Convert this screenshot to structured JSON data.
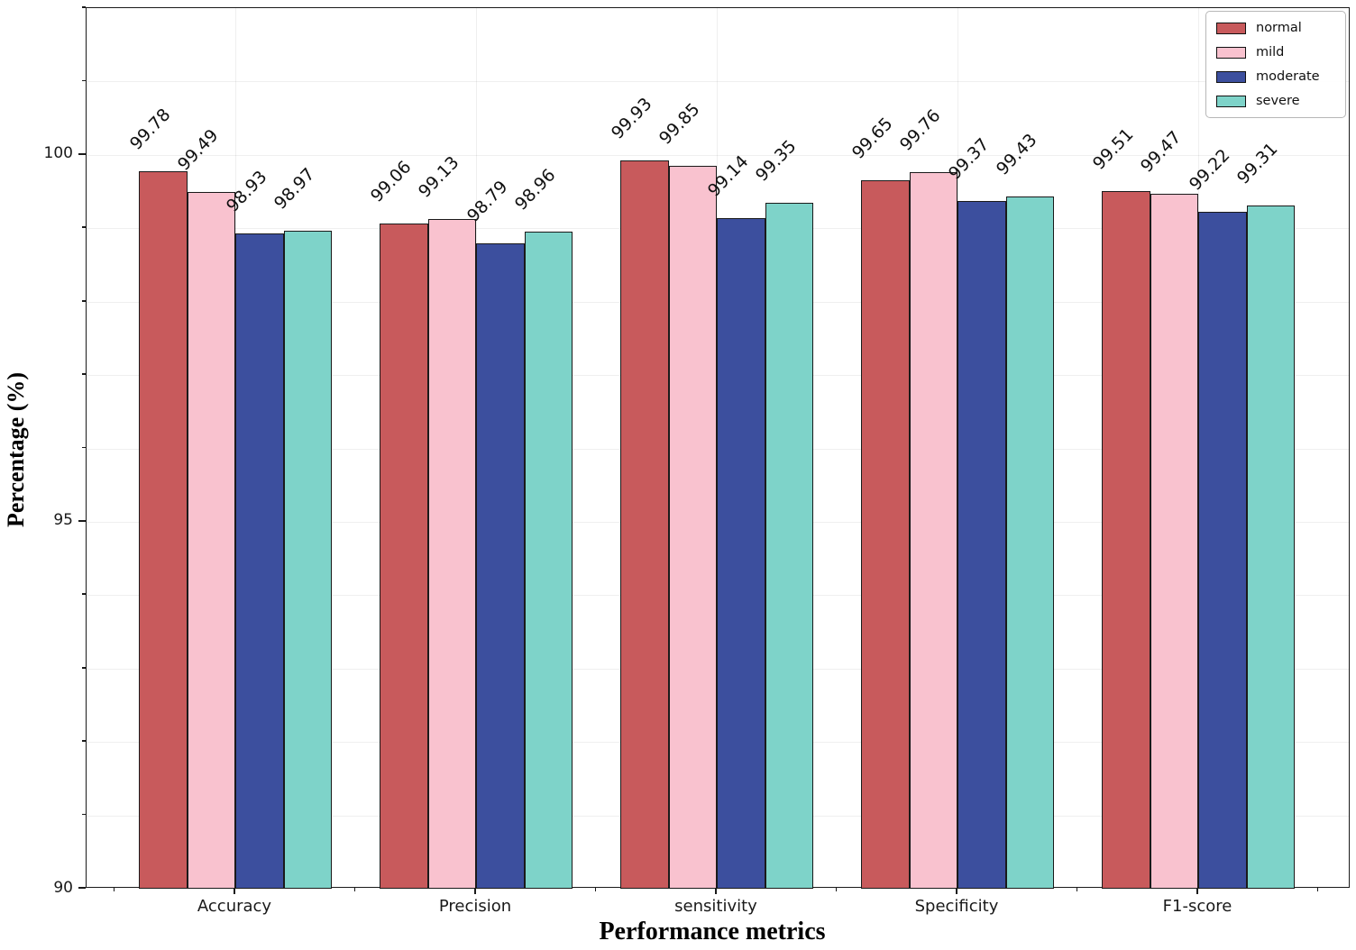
{
  "chart_data": {
    "type": "bar",
    "title": "",
    "xlabel": "Performance metrics",
    "ylabel": "Percentage (%)",
    "categories": [
      "Accuracy",
      "Precision",
      "sensitivity",
      "Specificity",
      "F1-score"
    ],
    "series": [
      {
        "name": "normal",
        "color": "#C85A5C",
        "values": [
          99.78,
          99.06,
          99.93,
          99.65,
          99.51
        ]
      },
      {
        "name": "mild",
        "color": "#F9C2CF",
        "values": [
          99.49,
          99.13,
          99.85,
          99.76,
          99.47
        ]
      },
      {
        "name": "moderate",
        "color": "#3C4F9E",
        "values": [
          98.93,
          98.79,
          99.14,
          99.37,
          99.22
        ]
      },
      {
        "name": "severe",
        "color": "#7ED3C9",
        "values": [
          98.97,
          98.96,
          99.35,
          99.43,
          99.31
        ]
      }
    ],
    "ylim": [
      90,
      102
    ],
    "yticks_major": [
      90,
      95,
      100
    ],
    "grid": "faint minor grid on",
    "legend_position": "upper right",
    "bar_edge_color": "#1a1a1a",
    "value_label_rotation_deg": -45
  }
}
